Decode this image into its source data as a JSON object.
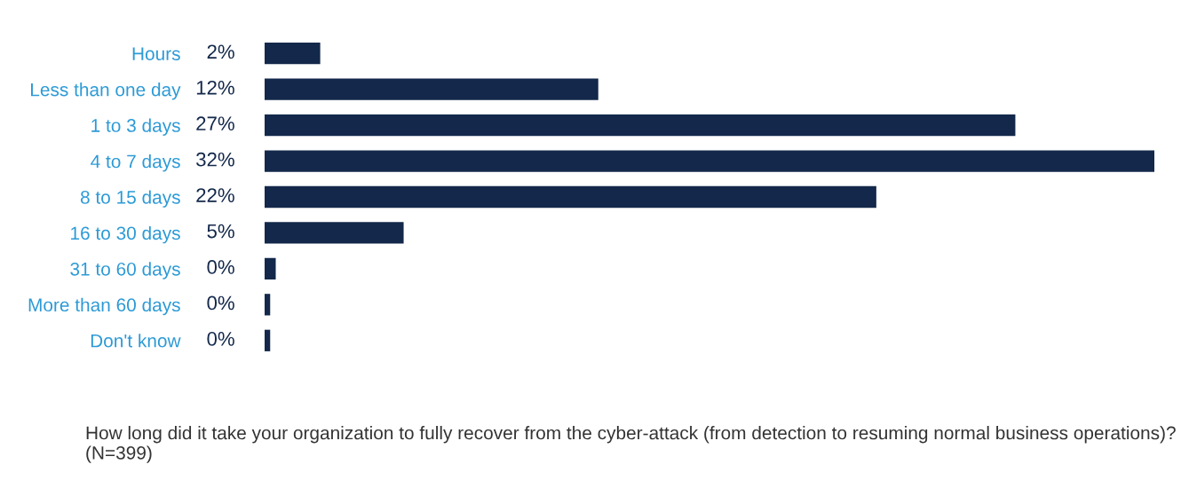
{
  "chart_data": {
    "type": "bar",
    "orientation": "horizontal",
    "categories": [
      "Hours",
      "Less than one day",
      "1 to 3 days",
      "4 to 7 days",
      "8 to 15 days",
      "16 to 30 days",
      "31 to 60 days",
      "More than 60 days",
      "Don't know"
    ],
    "values": [
      2,
      12,
      27,
      32,
      22,
      5,
      0.4,
      0.2,
      0.2
    ],
    "value_labels": [
      "2%",
      "12%",
      "27%",
      "32%",
      "22%",
      "5%",
      "0%",
      "0%",
      "0%"
    ],
    "color": "#13284a",
    "annotations": [
      "How long did it take your organization to fully recover from the cyber-attack (from detection to resuming normal business operations)? (N=399)"
    ],
    "grid": false,
    "legend": false
  }
}
